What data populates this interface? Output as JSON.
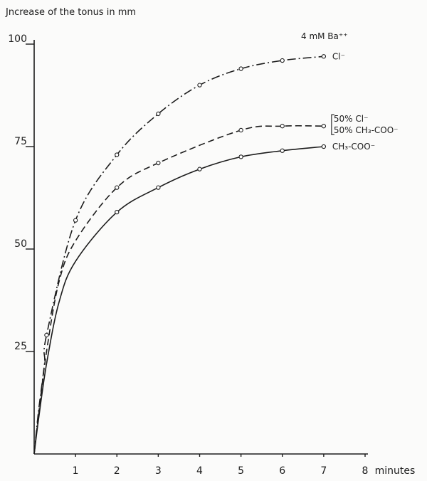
{
  "chart_data": {
    "type": "line",
    "title": "Jncrease of the tonus in mm",
    "xlabel": "minutes",
    "ylabel": "",
    "xlim": [
      0,
      8
    ],
    "ylim": [
      0,
      100
    ],
    "x_ticks": [
      "1",
      "2",
      "3",
      "4",
      "5",
      "6",
      "7",
      "8"
    ],
    "y_ticks": [
      "25",
      "50",
      "75",
      "100"
    ],
    "grid": false,
    "annotation": "4 mM Ba⁺⁺",
    "series": [
      {
        "name": "Cl⁻",
        "label_lines": [
          "Cl⁻"
        ],
        "dash": "12 4 2 4",
        "x": [
          0.3,
          1,
          2,
          3,
          4,
          5,
          6,
          7
        ],
        "y": [
          29,
          57,
          73,
          83,
          90,
          94,
          96,
          97
        ]
      },
      {
        "name": "50% Cl⁻ / 50% CH₃-COO⁻",
        "label_lines": [
          "50% Cl⁻",
          "50% CH₃-COO⁻"
        ],
        "dash": "9 5",
        "x": [
          2,
          3,
          5,
          6,
          7
        ],
        "y": [
          65,
          71,
          79,
          80,
          80
        ]
      },
      {
        "name": "CH₃-COO⁻",
        "label_lines": [
          "CH₃-COO⁻"
        ],
        "dash": "",
        "x": [
          2,
          3,
          4,
          5,
          6,
          7
        ],
        "y": [
          59,
          65,
          69.5,
          72.5,
          74,
          75
        ]
      }
    ]
  }
}
